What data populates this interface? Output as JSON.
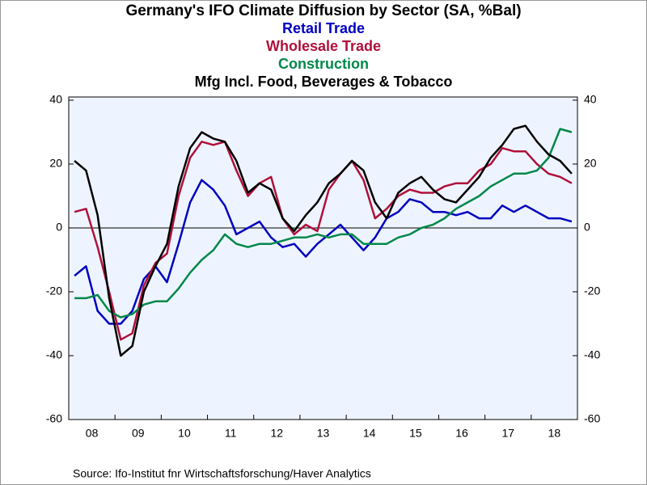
{
  "chart_data": {
    "type": "line",
    "title": "Germany's IFO Climate Diffusion by Sector (SA, %Bal)",
    "source": "Source:  Ifo-Institut fnr Wirtschaftsforschung/Haver Analytics",
    "categories": [
      null,
      "08",
      null,
      null,
      null,
      "09",
      null,
      null,
      null,
      "10",
      null,
      null,
      null,
      "11",
      null,
      null,
      null,
      "12",
      null,
      null,
      null,
      "13",
      null,
      null,
      null,
      "14",
      null,
      null,
      null,
      "15",
      null,
      null,
      null,
      "16",
      null,
      null,
      null,
      "17",
      null,
      null,
      null,
      "18",
      null,
      null
    ],
    "series": [
      {
        "name": "Retail Trade",
        "color": "#0000c0",
        "values": [
          -15,
          -12,
          -26,
          -30,
          -30,
          -26,
          -16,
          -12,
          -17,
          -5,
          8,
          15,
          12,
          7,
          -2,
          0,
          2,
          -3,
          -6,
          -5,
          -9,
          -5,
          -2,
          1,
          -3,
          -7,
          -3,
          3,
          5,
          9,
          8,
          5,
          5,
          4,
          5,
          3,
          3,
          7,
          5,
          7,
          5,
          3,
          3,
          2
        ]
      },
      {
        "name": "Wholesale Trade",
        "color": "#b0103a",
        "values": [
          5,
          6,
          -6,
          -20,
          -35,
          -33,
          -18,
          -11,
          -8,
          10,
          22,
          27,
          26,
          27,
          18,
          10,
          14,
          16,
          3,
          -2,
          1,
          -1,
          12,
          17,
          21,
          15,
          3,
          6,
          10,
          12,
          11,
          11,
          13,
          14,
          14,
          18,
          20,
          25,
          24,
          24,
          20,
          17,
          16,
          14
        ]
      },
      {
        "name": "Construction",
        "color": "#00884a",
        "values": [
          -22,
          -22,
          -21,
          -26,
          -28,
          -27,
          -24,
          -23,
          -23,
          -19,
          -14,
          -10,
          -7,
          -2,
          -5,
          -6,
          -5,
          -5,
          -4,
          -3,
          -3,
          -2,
          -3,
          -2,
          -2,
          -5,
          -5,
          -5,
          -3,
          -2,
          0,
          1,
          3,
          6,
          8,
          10,
          13,
          15,
          17,
          17,
          18,
          22,
          31,
          30
        ]
      },
      {
        "name": "Mfg Incl. Food, Beverages & Tobacco",
        "color": "#000000",
        "values": [
          21,
          18,
          4,
          -22,
          -40,
          -37,
          -20,
          -12,
          -5,
          13,
          25,
          30,
          28,
          27,
          21,
          11,
          14,
          12,
          3,
          -1,
          4,
          8,
          14,
          17,
          21,
          18,
          8,
          3,
          11,
          14,
          16,
          12,
          9,
          8,
          12,
          16,
          22,
          26,
          31,
          32,
          27,
          23,
          21,
          17
        ]
      }
    ],
    "ylim": [
      -60,
      41
    ],
    "yticks": [
      -60,
      -40,
      -20,
      0,
      20,
      40
    ]
  }
}
